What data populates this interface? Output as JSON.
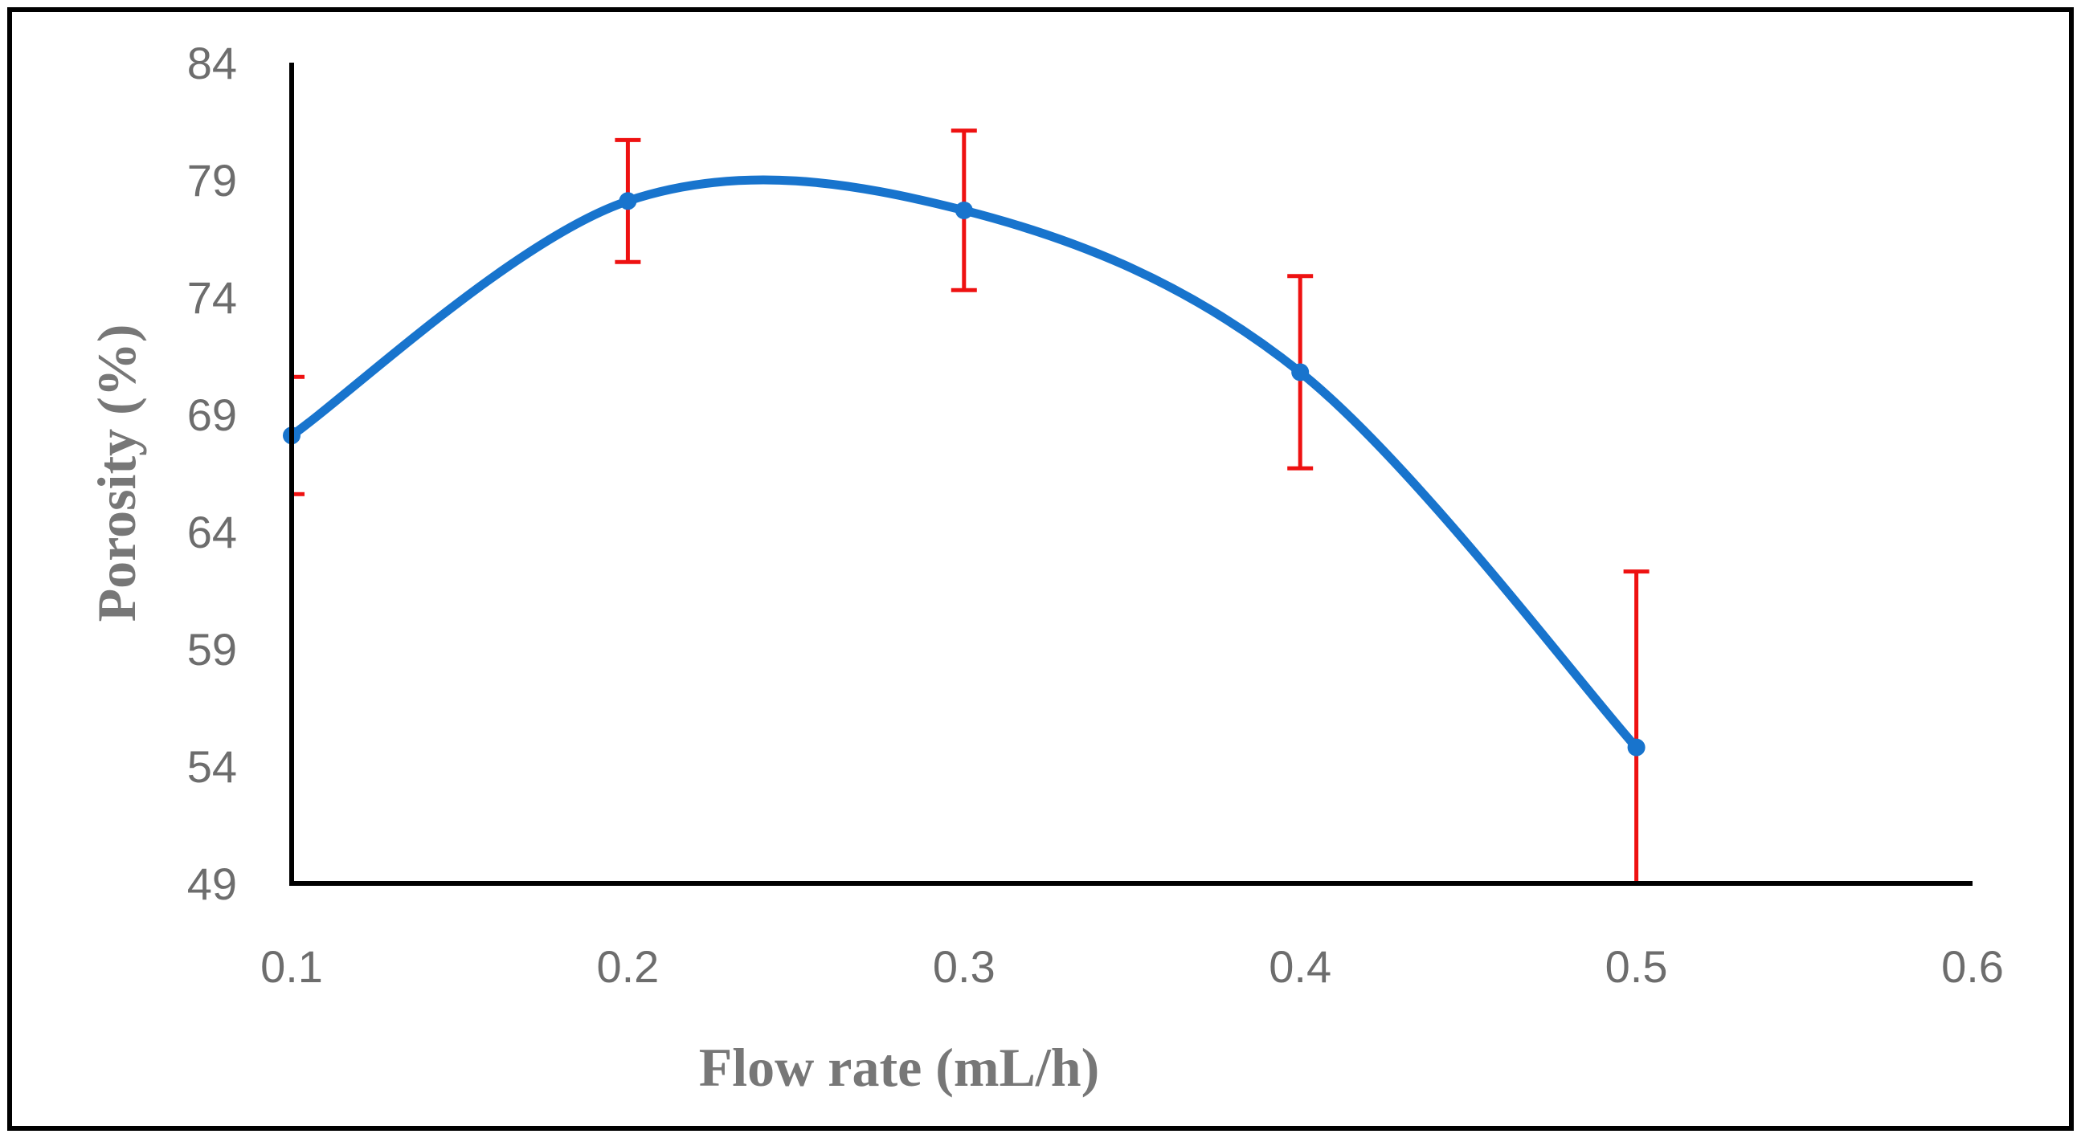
{
  "chart_data": {
    "type": "line",
    "title": "",
    "xlabel": "Flow rate (mL/h)",
    "ylabel": "Porosity (%)",
    "xlim": [
      0.1,
      0.6
    ],
    "ylim": [
      49,
      84
    ],
    "xticks": [
      0.1,
      0.2,
      0.3,
      0.4,
      0.5,
      0.6
    ],
    "yticks": [
      49,
      54,
      59,
      64,
      69,
      74,
      79,
      84
    ],
    "xtick_labels": [
      "0.1",
      "0.2",
      "0.3",
      "0.4",
      "0.5",
      "0.6"
    ],
    "ytick_labels": [
      "49",
      "54",
      "59",
      "64",
      "69",
      "74",
      "79",
      "84"
    ],
    "grid": false,
    "smooth": true,
    "series": [
      {
        "name": "Porosity",
        "x": [
          0.1,
          0.2,
          0.3,
          0.4,
          0.5
        ],
        "y": [
          68.1,
          78.1,
          77.7,
          70.8,
          54.8
        ],
        "error_low": [
          2.5,
          2.6,
          3.4,
          4.1,
          5.8
        ],
        "error_high": [
          2.5,
          2.6,
          3.4,
          4.1,
          7.5
        ]
      }
    ]
  },
  "colors": {
    "line": "#1874cd",
    "error_bar": "#ee1111",
    "axis": "#000000",
    "tick_text": "#6d6d6d",
    "title_text": "#777777",
    "frame": "#000000"
  }
}
